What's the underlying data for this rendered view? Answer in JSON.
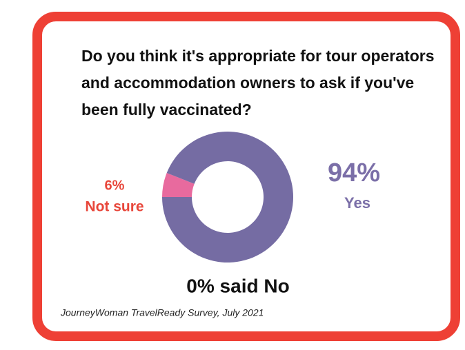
{
  "chart_data": {
    "type": "donut",
    "title": "Do you think it's appropriate for tour operators and accommodation owners to ask if you've been fully vaccinated?",
    "categories": [
      "Yes",
      "Not sure"
    ],
    "values": [
      94,
      6
    ],
    "value_labels": [
      "94%",
      "6%"
    ],
    "colors": [
      "#756ca3",
      "#e86a9e"
    ],
    "label_colors": [
      "#7b6fa8",
      "#e8463a"
    ],
    "annotation": "0% said No",
    "source": "JourneyWoman TravelReady Survey, July 2021"
  }
}
